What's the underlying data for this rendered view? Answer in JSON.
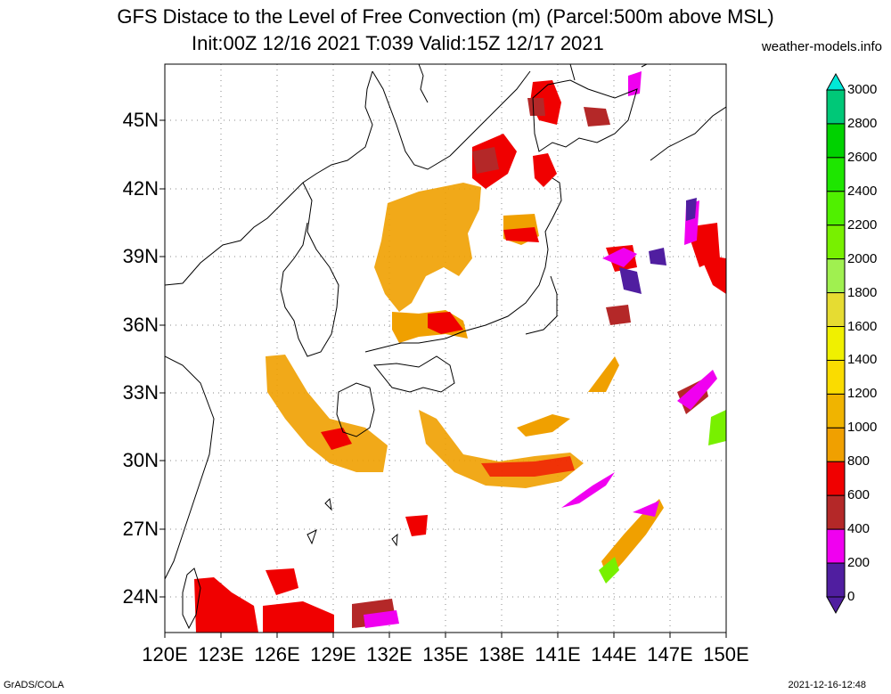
{
  "title": "GFS Distace to the Level of Free Convection (m) (Parcel:500m above MSL)",
  "subtitle": "Init:00Z 12/16 2021 T:039 Valid:15Z 12/17 2021",
  "site": "weather-models.info",
  "footer_left": "GrADS/COLA",
  "footer_right": "2021-12-16-12:48",
  "lat_labels": [
    "45N",
    "42N",
    "39N",
    "36N",
    "33N",
    "30N",
    "27N",
    "24N"
  ],
  "lon_labels": [
    "120E",
    "123E",
    "126E",
    "129E",
    "132E",
    "135E",
    "138E",
    "141E",
    "144E",
    "147E",
    "150E"
  ],
  "colorbar": {
    "labels": [
      "3000",
      "2800",
      "2600",
      "2400",
      "2200",
      "2000",
      "1800",
      "1600",
      "1400",
      "1200",
      "1000",
      "800",
      "600",
      "400",
      "200",
      "0"
    ],
    "colors": [
      "#00e8d8",
      "#00c878",
      "#00d200",
      "#1ee600",
      "#50f000",
      "#78f000",
      "#a0f050",
      "#e6dc32",
      "#f0f000",
      "#fadc00",
      "#f0b400",
      "#f0a000",
      "#f00000",
      "#b42828",
      "#f000f0",
      "#501ea0"
    ]
  }
}
